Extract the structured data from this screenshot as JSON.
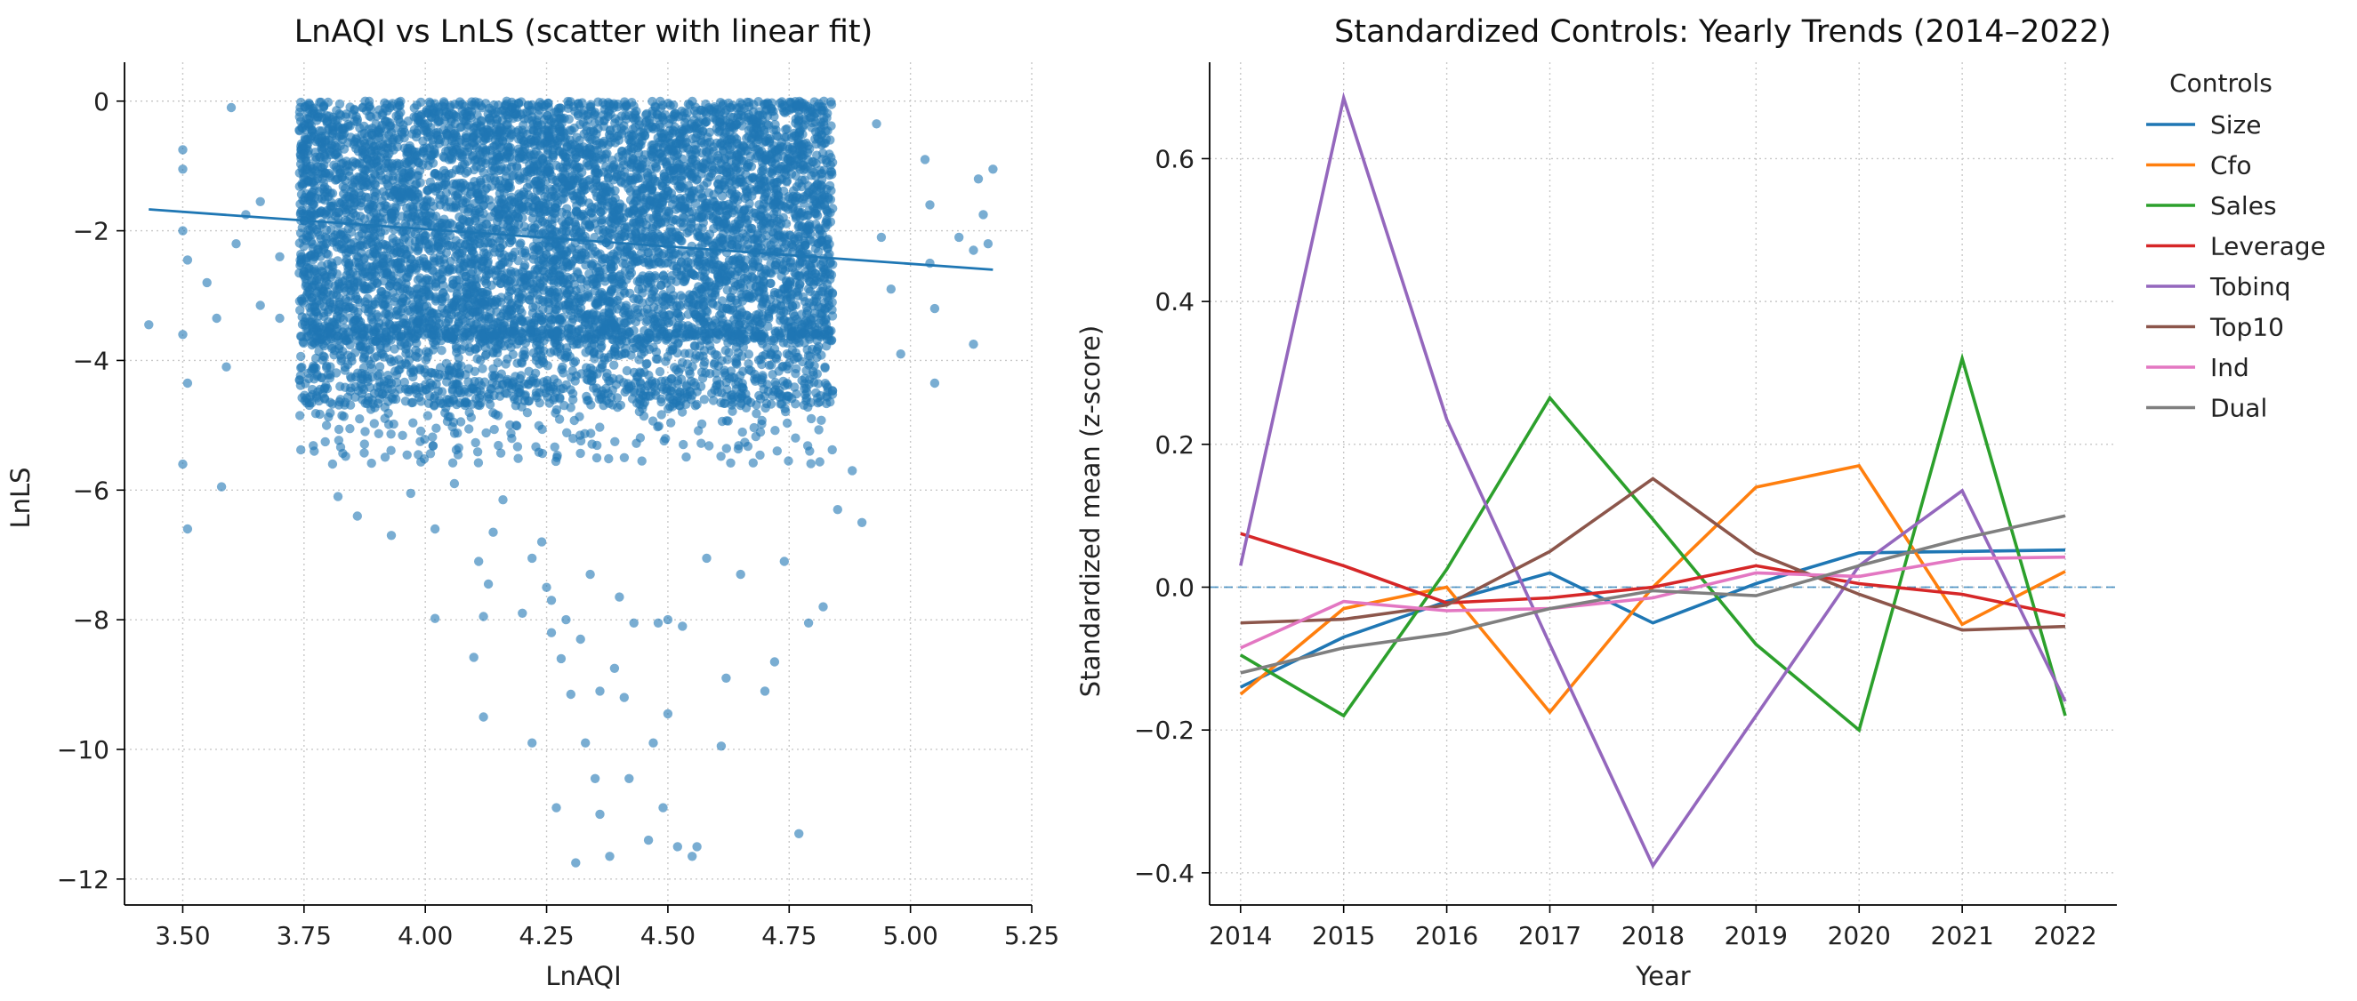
{
  "chart_data": [
    {
      "type": "scatter",
      "title": "LnAQI vs LnLS (scatter with linear fit)",
      "xlabel": "LnAQI",
      "ylabel": "LnLS",
      "xlim": [
        3.38,
        5.25
      ],
      "ylim": [
        -12.4,
        0.6
      ],
      "xticks": [
        3.5,
        3.75,
        4.0,
        4.25,
        4.5,
        4.75,
        5.0,
        5.25
      ],
      "xtick_labels": [
        "3.50",
        "3.75",
        "4.00",
        "4.25",
        "4.50",
        "4.75",
        "5.00",
        "5.25"
      ],
      "yticks": [
        0,
        -2,
        -4,
        -6,
        -8,
        -10,
        -12
      ],
      "ytick_labels": [
        "0",
        "−2",
        "−4",
        "−6",
        "−8",
        "−10",
        "−12"
      ],
      "grid": true,
      "color": "#1f77b4",
      "fit_line": {
        "x": [
          3.43,
          5.17
        ],
        "y": [
          -1.67,
          -2.6
        ]
      },
      "points": [
        [
          3.43,
          -3.45
        ],
        [
          3.5,
          -0.75
        ],
        [
          3.5,
          -1.05
        ],
        [
          3.5,
          -2.0
        ],
        [
          3.51,
          -2.45
        ],
        [
          3.5,
          -3.6
        ],
        [
          3.51,
          -4.35
        ],
        [
          3.5,
          -5.6
        ],
        [
          3.51,
          -6.6
        ],
        [
          3.55,
          -2.8
        ],
        [
          3.57,
          -3.35
        ],
        [
          3.59,
          -4.1
        ],
        [
          3.61,
          -2.2
        ],
        [
          3.63,
          -1.75
        ],
        [
          3.6,
          -0.1
        ],
        [
          3.58,
          -5.95
        ],
        [
          3.66,
          -1.55
        ],
        [
          3.66,
          -3.15
        ],
        [
          3.7,
          -2.4
        ],
        [
          3.7,
          -3.35
        ],
        [
          3.82,
          -6.1
        ],
        [
          3.86,
          -6.4
        ],
        [
          3.93,
          -6.7
        ],
        [
          3.97,
          -6.05
        ],
        [
          4.02,
          -6.6
        ],
        [
          4.02,
          -7.98
        ],
        [
          4.06,
          -5.9
        ],
        [
          4.1,
          -8.58
        ],
        [
          4.11,
          -7.1
        ],
        [
          4.12,
          -7.95
        ],
        [
          4.13,
          -7.45
        ],
        [
          4.14,
          -6.65
        ],
        [
          4.12,
          -9.5
        ],
        [
          4.16,
          -6.15
        ],
        [
          4.2,
          -7.9
        ],
        [
          4.22,
          -7.05
        ],
        [
          4.22,
          -9.9
        ],
        [
          4.24,
          -6.8
        ],
        [
          4.25,
          -7.5
        ],
        [
          4.26,
          -8.2
        ],
        [
          4.26,
          -7.7
        ],
        [
          4.27,
          -10.9
        ],
        [
          4.28,
          -8.6
        ],
        [
          4.29,
          -8.0
        ],
        [
          4.3,
          -9.15
        ],
        [
          4.31,
          -11.75
        ],
        [
          4.32,
          -8.3
        ],
        [
          4.33,
          -9.9
        ],
        [
          4.34,
          -7.3
        ],
        [
          4.35,
          -10.45
        ],
        [
          4.36,
          -9.1
        ],
        [
          4.36,
          -11.0
        ],
        [
          4.38,
          -11.65
        ],
        [
          4.39,
          -8.75
        ],
        [
          4.4,
          -7.65
        ],
        [
          4.41,
          -9.2
        ],
        [
          4.42,
          -10.45
        ],
        [
          4.43,
          -8.05
        ],
        [
          4.46,
          -11.4
        ],
        [
          4.47,
          -9.9
        ],
        [
          4.48,
          -8.05
        ],
        [
          4.49,
          -10.9
        ],
        [
          4.5,
          -9.45
        ],
        [
          4.5,
          -8.0
        ],
        [
          4.52,
          -11.5
        ],
        [
          4.53,
          -8.1
        ],
        [
          4.55,
          -11.65
        ],
        [
          4.56,
          -11.5
        ],
        [
          4.58,
          -7.05
        ],
        [
          4.61,
          -9.95
        ],
        [
          4.62,
          -8.9
        ],
        [
          4.65,
          -7.3
        ],
        [
          4.7,
          -9.1
        ],
        [
          4.72,
          -8.65
        ],
        [
          4.74,
          -7.1
        ],
        [
          4.77,
          -11.3
        ],
        [
          4.79,
          -8.05
        ],
        [
          4.82,
          -7.8
        ],
        [
          4.85,
          -6.3
        ],
        [
          4.9,
          -6.5
        ],
        [
          4.88,
          -5.7
        ],
        [
          4.93,
          -0.35
        ],
        [
          4.94,
          -2.1
        ],
        [
          4.96,
          -2.9
        ],
        [
          4.98,
          -3.9
        ],
        [
          5.03,
          -0.9
        ],
        [
          5.04,
          -1.6
        ],
        [
          5.04,
          -2.5
        ],
        [
          5.05,
          -3.2
        ],
        [
          5.05,
          -4.35
        ],
        [
          5.1,
          -2.1
        ],
        [
          5.13,
          -2.3
        ],
        [
          5.13,
          -3.75
        ],
        [
          5.14,
          -1.2
        ],
        [
          5.15,
          -1.75
        ],
        [
          5.16,
          -2.2
        ],
        [
          5.17,
          -1.05
        ]
      ]
    },
    {
      "type": "line",
      "title": "Standardized Controls: Yearly Trends (2014–2022)",
      "xlabel": "Year",
      "ylabel": "Standardized mean (z-score)",
      "categories": [
        2014,
        2015,
        2016,
        2017,
        2018,
        2019,
        2020,
        2021,
        2022
      ],
      "xtick_labels": [
        "2014",
        "2015",
        "2016",
        "2017",
        "2018",
        "2019",
        "2020",
        "2021",
        "2022"
      ],
      "xlim": [
        2013.7,
        2022.5
      ],
      "ylim": [
        -0.445,
        0.735
      ],
      "yticks": [
        -0.4,
        -0.2,
        0.0,
        0.2,
        0.4,
        0.6
      ],
      "ytick_labels": [
        "−0.4",
        "−0.2",
        "0.0",
        "0.2",
        "0.4",
        "0.6"
      ],
      "grid": true,
      "reference_line": 0,
      "legend_title": "Controls",
      "legend_position": "outside top-right",
      "series": [
        {
          "name": "Size",
          "color": "#1f77b4",
          "values": [
            -0.14,
            -0.07,
            -0.02,
            0.02,
            -0.05,
            0.005,
            0.048,
            0.05,
            0.052
          ]
        },
        {
          "name": "Cfo",
          "color": "#ff7f0e",
          "values": [
            -0.15,
            -0.03,
            0.0,
            -0.175,
            0.0,
            0.14,
            0.17,
            -0.052,
            0.022
          ]
        },
        {
          "name": "Sales",
          "color": "#2ca02c",
          "values": [
            -0.095,
            -0.18,
            0.025,
            0.265,
            0.095,
            -0.08,
            -0.2,
            0.32,
            -0.18
          ]
        },
        {
          "name": "Leverage",
          "color": "#d62728",
          "values": [
            0.075,
            0.03,
            -0.022,
            -0.015,
            0.0,
            0.03,
            0.005,
            -0.01,
            -0.04
          ]
        },
        {
          "name": "Tobinq",
          "color": "#9467bd",
          "values": [
            0.03,
            0.685,
            0.235,
            -0.08,
            -0.39,
            -0.18,
            0.03,
            0.135,
            -0.16
          ]
        },
        {
          "name": "Top10",
          "color": "#8c564b",
          "values": [
            -0.05,
            -0.045,
            -0.025,
            0.05,
            0.152,
            0.048,
            -0.01,
            -0.06,
            -0.055
          ]
        },
        {
          "name": "Ind",
          "color": "#e377c2",
          "values": [
            -0.085,
            -0.02,
            -0.033,
            -0.03,
            -0.015,
            0.02,
            0.015,
            0.04,
            0.042
          ]
        },
        {
          "name": "Dual",
          "color": "#7f7f7f",
          "values": [
            -0.12,
            -0.085,
            -0.065,
            -0.03,
            -0.005,
            -0.012,
            0.03,
            0.068,
            0.1
          ]
        }
      ]
    }
  ]
}
